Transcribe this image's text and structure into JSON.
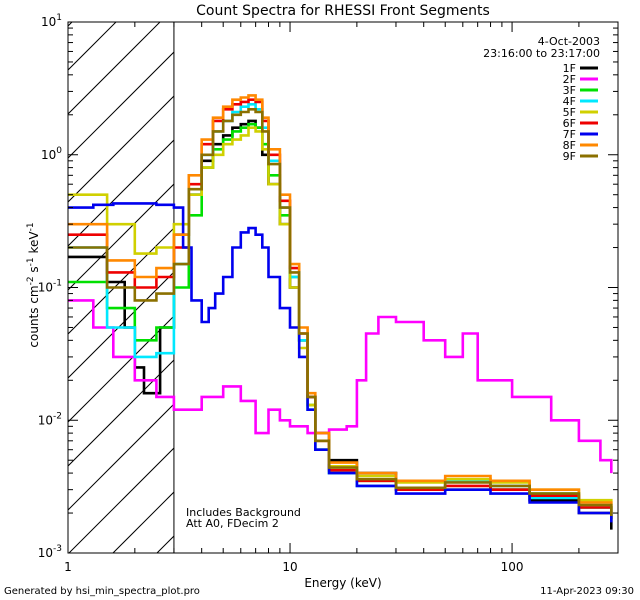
{
  "chart_data": {
    "type": "line",
    "title": "Count Spectra for RHESSI Front Segments",
    "xlabel": "Energy (keV)",
    "ylabel": {
      "base": "counts cm",
      "exp1": "-2",
      "mid": " s",
      "exp2": "-1",
      "unit": " keV",
      "exp3": "-1"
    },
    "x_scale": "log",
    "y_scale": "log",
    "xlim": [
      1,
      300
    ],
    "ylim": [
      0.001,
      10
    ],
    "x_ticks": [
      {
        "value": 1,
        "label": "1"
      },
      {
        "value": 10,
        "label": "10"
      },
      {
        "value": 100,
        "label": "100"
      }
    ],
    "y_ticks": [
      {
        "value": 0.001,
        "base": "10",
        "exp": "-3"
      },
      {
        "value": 0.01,
        "base": "10",
        "exp": "-2"
      },
      {
        "value": 0.1,
        "base": "10",
        "exp": "-1"
      },
      {
        "value": 1,
        "base": "10",
        "exp": "0"
      },
      {
        "value": 10,
        "base": "10",
        "exp": "1"
      }
    ],
    "hatched_region": {
      "x_from": 1,
      "x_to": 3
    },
    "date": "4-Oct-2003",
    "time_range": "23:16:00 to 23:17:00",
    "notes": [
      "Includes Background",
      "Att A0, FDecim 2"
    ],
    "series": [
      {
        "name": "1F",
        "color": "#000000",
        "x": [
          1.0,
          1.5,
          1.8,
          2.0,
          2.2,
          2.6,
          3.0,
          3.5,
          4.0,
          4.5,
          5.0,
          5.5,
          6.0,
          6.5,
          7.0,
          7.5,
          8.0,
          9.0,
          10.0,
          11.0,
          12.0,
          13.0,
          15.0,
          20.0,
          30.0,
          50.0,
          80.0,
          120.0,
          200.0,
          280.0
        ],
        "y": [
          0.17,
          0.11,
          0.05,
          0.025,
          0.016,
          0.05,
          0.25,
          0.5,
          0.9,
          1.2,
          1.4,
          1.6,
          1.7,
          1.8,
          1.6,
          1.0,
          0.6,
          0.3,
          0.1,
          0.04,
          0.015,
          0.008,
          0.005,
          0.004,
          0.003,
          0.0035,
          0.003,
          0.0025,
          0.002,
          0.0015
        ]
      },
      {
        "name": "2F",
        "color": "#ff00ff",
        "x": [
          1.0,
          1.3,
          1.6,
          2.0,
          2.5,
          3.0,
          4.0,
          5.0,
          6.0,
          7.0,
          8.0,
          9.0,
          10.0,
          12.0,
          15.0,
          18.0,
          20.0,
          22.0,
          25.0,
          30.0,
          40.0,
          50.0,
          60.0,
          70.0,
          100.0,
          150.0,
          200.0,
          250.0,
          280.0
        ],
        "y": [
          0.08,
          0.05,
          0.03,
          0.02,
          0.015,
          0.012,
          0.015,
          0.018,
          0.014,
          0.008,
          0.012,
          0.01,
          0.009,
          0.008,
          0.0085,
          0.009,
          0.02,
          0.045,
          0.06,
          0.055,
          0.04,
          0.03,
          0.045,
          0.02,
          0.015,
          0.01,
          0.007,
          0.005,
          0.004
        ]
      },
      {
        "name": "3F",
        "color": "#00e000",
        "x": [
          1.0,
          1.5,
          2.0,
          2.5,
          3.0,
          3.5,
          4.0,
          4.5,
          5.0,
          5.5,
          6.0,
          6.5,
          7.0,
          7.5,
          8.0,
          9.0,
          10.0,
          11.0,
          12.0,
          13.0,
          15.0,
          20.0,
          30.0,
          50.0,
          80.0,
          120.0,
          200.0,
          280.0
        ],
        "y": [
          0.11,
          0.07,
          0.04,
          0.05,
          0.1,
          0.35,
          0.8,
          1.1,
          1.3,
          1.5,
          1.6,
          1.7,
          1.6,
          1.2,
          0.7,
          0.35,
          0.12,
          0.04,
          0.013,
          0.006,
          0.004,
          0.0035,
          0.003,
          0.003,
          0.003,
          0.0028,
          0.0022,
          0.0018
        ]
      },
      {
        "name": "4F",
        "color": "#00e8ff",
        "x": [
          1.0,
          1.5,
          2.0,
          2.5,
          3.0,
          3.5,
          4.0,
          4.5,
          5.0,
          5.5,
          6.0,
          6.5,
          7.0,
          7.5,
          8.0,
          9.0,
          10.0,
          11.0,
          12.0,
          13.0,
          15.0,
          20.0,
          30.0,
          50.0,
          80.0,
          120.0,
          200.0,
          280.0
        ],
        "y": [
          0.2,
          0.05,
          0.03,
          0.032,
          0.15,
          0.5,
          1.0,
          1.5,
          1.8,
          2.1,
          2.3,
          2.4,
          2.2,
          1.6,
          0.9,
          0.4,
          0.12,
          0.04,
          0.012,
          0.006,
          0.004,
          0.0032,
          0.003,
          0.0035,
          0.0032,
          0.0026,
          0.0022,
          0.0018
        ]
      },
      {
        "name": "5F",
        "color": "#d0d000",
        "x": [
          1.0,
          1.5,
          2.0,
          2.5,
          3.0,
          3.5,
          4.0,
          4.5,
          5.0,
          5.5,
          6.0,
          6.5,
          7.0,
          7.5,
          8.0,
          9.0,
          10.0,
          11.0,
          12.0,
          13.0,
          15.0,
          20.0,
          30.0,
          50.0,
          80.0,
          120.0,
          200.0,
          280.0
        ],
        "y": [
          0.5,
          0.3,
          0.18,
          0.2,
          0.3,
          0.5,
          0.8,
          1.0,
          1.2,
          1.3,
          1.4,
          1.6,
          1.5,
          1.1,
          0.6,
          0.3,
          0.1,
          0.035,
          0.013,
          0.007,
          0.0045,
          0.0038,
          0.0034,
          0.0036,
          0.0034,
          0.003,
          0.0025,
          0.0022
        ]
      },
      {
        "name": "6F",
        "color": "#ee0000",
        "x": [
          1.0,
          1.5,
          2.0,
          2.5,
          3.0,
          3.5,
          4.0,
          4.5,
          5.0,
          5.5,
          6.0,
          6.5,
          7.0,
          7.5,
          8.0,
          9.0,
          10.0,
          11.0,
          12.0,
          13.0,
          15.0,
          20.0,
          30.0,
          50.0,
          80.0,
          120.0,
          200.0,
          280.0
        ],
        "y": [
          0.25,
          0.13,
          0.1,
          0.12,
          0.2,
          0.6,
          1.2,
          1.8,
          2.2,
          2.4,
          2.5,
          2.6,
          2.5,
          1.8,
          1.0,
          0.45,
          0.14,
          0.045,
          0.015,
          0.007,
          0.0042,
          0.0035,
          0.003,
          0.0032,
          0.003,
          0.0027,
          0.0022,
          0.0018
        ]
      },
      {
        "name": "7F",
        "color": "#0000ee",
        "x": [
          1.0,
          1.3,
          1.6,
          2.0,
          2.5,
          3.0,
          3.3,
          3.6,
          4.0,
          4.3,
          4.6,
          5.0,
          5.5,
          6.0,
          6.5,
          7.0,
          7.5,
          8.0,
          9.0,
          10.0,
          11.0,
          12.0,
          13.0,
          15.0,
          20.0,
          30.0,
          50.0,
          80.0,
          120.0,
          200.0,
          280.0
        ],
        "y": [
          0.4,
          0.42,
          0.43,
          0.43,
          0.42,
          0.4,
          0.2,
          0.08,
          0.055,
          0.07,
          0.09,
          0.12,
          0.2,
          0.26,
          0.28,
          0.25,
          0.2,
          0.12,
          0.07,
          0.05,
          0.03,
          0.012,
          0.006,
          0.004,
          0.0032,
          0.0028,
          0.003,
          0.0028,
          0.0024,
          0.002,
          0.0017
        ]
      },
      {
        "name": "8F",
        "color": "#ff8800",
        "x": [
          1.0,
          1.5,
          2.0,
          2.5,
          3.0,
          3.5,
          4.0,
          4.5,
          5.0,
          5.5,
          6.0,
          6.5,
          7.0,
          7.5,
          8.0,
          9.0,
          10.0,
          11.0,
          12.0,
          13.0,
          15.0,
          20.0,
          30.0,
          50.0,
          80.0,
          120.0,
          200.0,
          280.0
        ],
        "y": [
          0.3,
          0.16,
          0.12,
          0.14,
          0.25,
          0.7,
          1.3,
          1.9,
          2.3,
          2.6,
          2.7,
          2.8,
          2.6,
          1.9,
          1.1,
          0.5,
          0.15,
          0.05,
          0.016,
          0.008,
          0.0048,
          0.004,
          0.0035,
          0.0038,
          0.0035,
          0.003,
          0.0024,
          0.002
        ]
      },
      {
        "name": "9F",
        "color": "#8b7000",
        "x": [
          1.0,
          1.5,
          2.0,
          2.5,
          3.0,
          3.5,
          4.0,
          4.5,
          5.0,
          5.5,
          6.0,
          6.5,
          7.0,
          7.5,
          8.0,
          9.0,
          10.0,
          11.0,
          12.0,
          13.0,
          15.0,
          20.0,
          30.0,
          50.0,
          80.0,
          120.0,
          200.0,
          280.0
        ],
        "y": [
          0.2,
          0.1,
          0.08,
          0.09,
          0.15,
          0.55,
          1.0,
          1.5,
          1.8,
          2.0,
          2.1,
          2.2,
          2.1,
          1.5,
          0.85,
          0.4,
          0.13,
          0.045,
          0.015,
          0.007,
          0.0044,
          0.0036,
          0.0031,
          0.0034,
          0.0032,
          0.0028,
          0.0023,
          0.0019
        ]
      }
    ]
  },
  "footer": {
    "generated_by": "Generated by hsi_min_spectra_plot.pro",
    "timestamp": "11-Apr-2023 09:30"
  }
}
